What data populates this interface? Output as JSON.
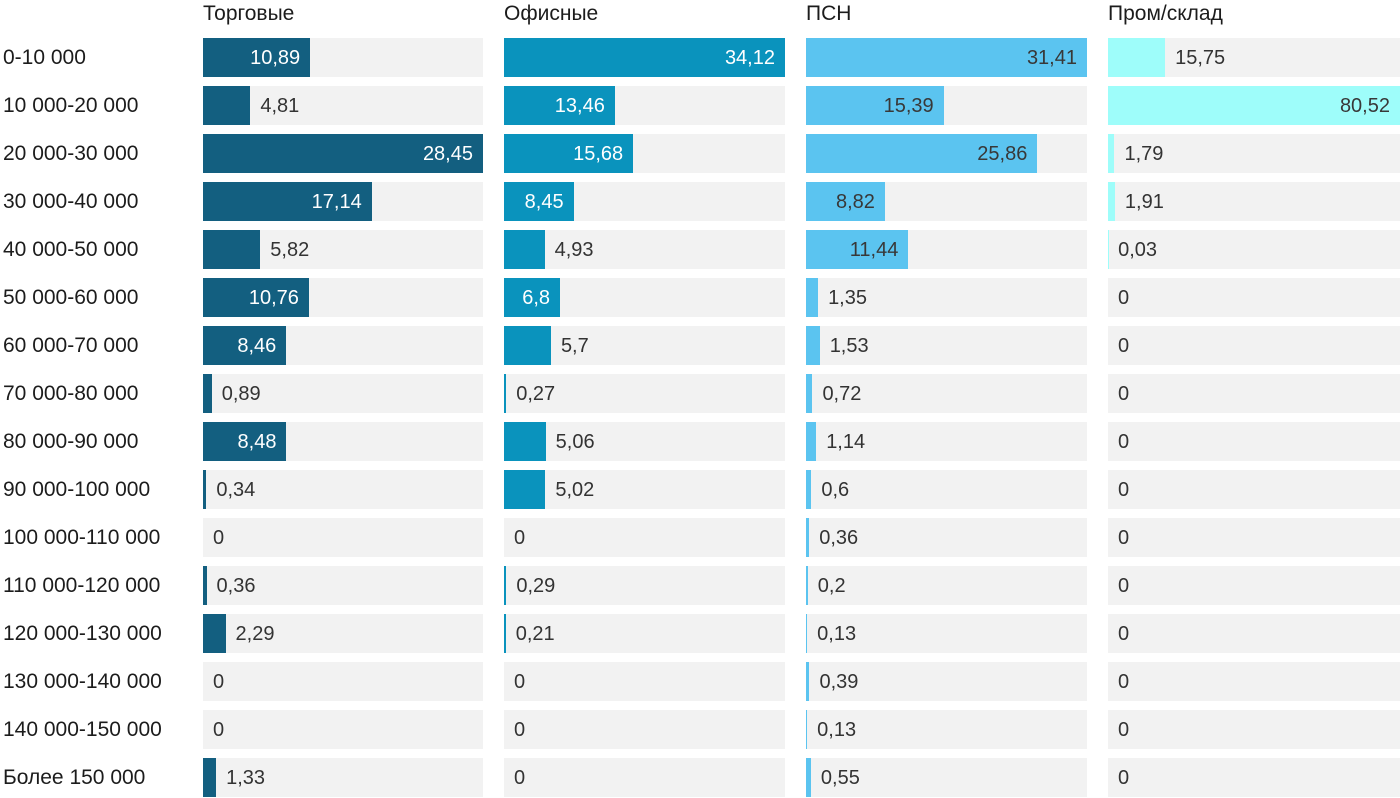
{
  "chart_data": {
    "type": "bar",
    "orientation": "horizontal",
    "title": "",
    "xlabel": "",
    "ylabel": "",
    "grid": false,
    "legend_position": "column-headers-top",
    "scaling": "each-column-scaled-to-own-max",
    "decimal_separator": ",",
    "track_color": "#f2f2f2",
    "value_label_color_outside": "#333333",
    "categories": [
      "0-10 000",
      "10 000-20 000",
      "20 000-30 000",
      "30 000-40 000",
      "40 000-50 000",
      "50 000-60 000",
      "60 000-70 000",
      "70 000-80 000",
      "80 000-90 000",
      "90 000-100 000",
      "100 000-110 000",
      "110 000-120 000",
      "120 000-130 000",
      "130 000-140 000",
      "140 000-150 000",
      "Более 150 000"
    ],
    "series": [
      {
        "name": "Торговые",
        "color": "#135f80",
        "label_color_on_bar": "#ffffff",
        "values": [
          10.89,
          4.81,
          28.45,
          17.14,
          5.82,
          10.76,
          8.46,
          0.89,
          8.48,
          0.34,
          0,
          0.36,
          2.29,
          0,
          0,
          1.33
        ]
      },
      {
        "name": "Офисные",
        "color": "#0a93bd",
        "label_color_on_bar": "#ffffff",
        "values": [
          34.12,
          13.46,
          15.68,
          8.45,
          4.93,
          6.8,
          5.7,
          0.27,
          5.06,
          5.02,
          0,
          0.29,
          0.21,
          0,
          0,
          0
        ]
      },
      {
        "name": "ПСН",
        "color": "#5bc4f0",
        "label_color_on_bar": "#383838",
        "values": [
          31.41,
          15.39,
          25.86,
          8.82,
          11.44,
          1.35,
          1.53,
          0.72,
          1.14,
          0.6,
          0.36,
          0.2,
          0.13,
          0.39,
          0.13,
          0.55
        ]
      },
      {
        "name": "Пром/склад",
        "color": "#9efdfa",
        "label_color_on_bar": "#383838",
        "values": [
          15.75,
          80.52,
          1.79,
          1.91,
          0.03,
          0,
          0,
          0,
          0,
          0,
          0,
          0,
          0,
          0,
          0,
          0
        ]
      }
    ]
  }
}
